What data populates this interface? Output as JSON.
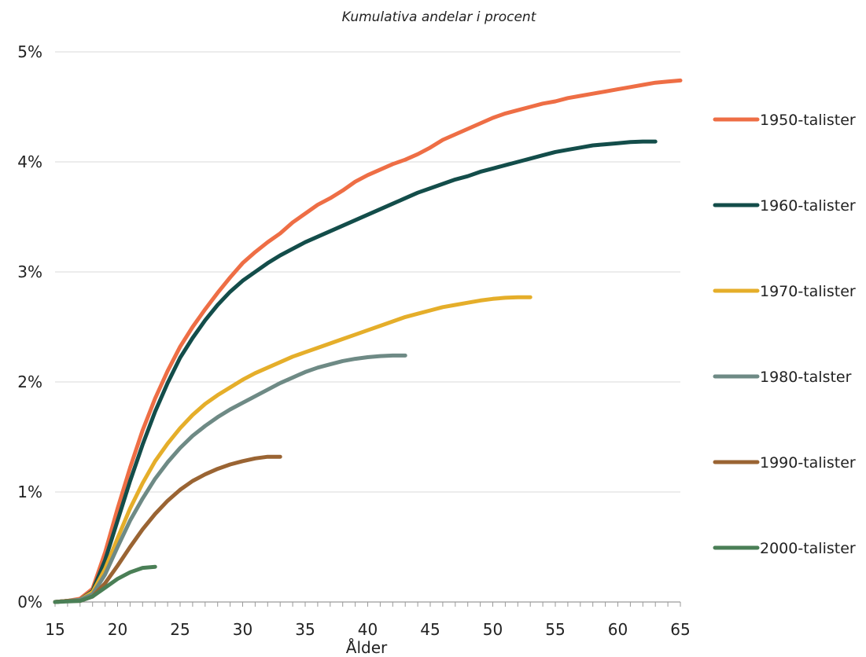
{
  "chart_data": {
    "type": "line",
    "title": "Kumulativa andelar i procent",
    "xlabel": "Ålder",
    "ylabel": "",
    "xlim": [
      15,
      65
    ],
    "ylim": [
      0,
      5
    ],
    "x_ticks": [
      15,
      20,
      25,
      30,
      35,
      40,
      45,
      50,
      55,
      60,
      65
    ],
    "y_ticks": [
      0,
      1,
      2,
      3,
      4,
      5
    ],
    "y_tick_labels": [
      "0%",
      "1%",
      "2%",
      "3%",
      "4%",
      "5%"
    ],
    "grid": "horizontal",
    "legend_position": "right",
    "series": [
      {
        "name": "1950-talister",
        "color": "#EE6E45",
        "x": [
          15,
          16,
          17,
          18,
          19,
          20,
          21,
          22,
          23,
          24,
          25,
          26,
          27,
          28,
          29,
          30,
          31,
          32,
          33,
          34,
          35,
          36,
          37,
          38,
          39,
          40,
          41,
          42,
          43,
          44,
          45,
          46,
          47,
          48,
          49,
          50,
          51,
          52,
          53,
          54,
          55,
          56,
          57,
          58,
          59,
          60,
          61,
          62,
          63,
          64,
          65
        ],
        "values": [
          0,
          0.01,
          0.03,
          0.12,
          0.45,
          0.85,
          1.22,
          1.56,
          1.85,
          2.1,
          2.32,
          2.5,
          2.66,
          2.81,
          2.95,
          3.08,
          3.18,
          3.27,
          3.35,
          3.45,
          3.53,
          3.61,
          3.67,
          3.74,
          3.82,
          3.88,
          3.93,
          3.98,
          4.02,
          4.07,
          4.13,
          4.2,
          4.25,
          4.3,
          4.35,
          4.4,
          4.44,
          4.47,
          4.5,
          4.53,
          4.55,
          4.58,
          4.6,
          4.62,
          4.64,
          4.66,
          4.68,
          4.7,
          4.72,
          4.73,
          4.74
        ]
      },
      {
        "name": "1960-talister",
        "color": "#134D4A",
        "x": [
          15,
          16,
          17,
          18,
          19,
          20,
          21,
          22,
          23,
          24,
          25,
          26,
          27,
          28,
          29,
          30,
          31,
          32,
          33,
          34,
          35,
          36,
          37,
          38,
          39,
          40,
          41,
          42,
          43,
          44,
          45,
          46,
          47,
          48,
          49,
          50,
          51,
          52,
          53,
          54,
          55,
          56,
          57,
          58,
          59,
          60,
          61,
          62,
          63
        ],
        "values": [
          0,
          0.01,
          0.02,
          0.1,
          0.38,
          0.74,
          1.1,
          1.43,
          1.73,
          1.99,
          2.22,
          2.4,
          2.56,
          2.7,
          2.82,
          2.92,
          3.0,
          3.08,
          3.15,
          3.21,
          3.27,
          3.32,
          3.37,
          3.42,
          3.47,
          3.52,
          3.57,
          3.62,
          3.67,
          3.72,
          3.76,
          3.8,
          3.84,
          3.87,
          3.91,
          3.94,
          3.97,
          4.0,
          4.03,
          4.06,
          4.09,
          4.11,
          4.13,
          4.15,
          4.16,
          4.17,
          4.18,
          4.185,
          4.185
        ]
      },
      {
        "name": "1970-talister",
        "color": "#E5AE2A",
        "x": [
          15,
          16,
          17,
          18,
          19,
          20,
          21,
          22,
          23,
          24,
          25,
          26,
          27,
          28,
          29,
          30,
          31,
          32,
          33,
          34,
          35,
          36,
          37,
          38,
          39,
          40,
          41,
          42,
          43,
          44,
          45,
          46,
          47,
          48,
          49,
          50,
          51,
          52,
          53
        ],
        "values": [
          0,
          0.01,
          0.02,
          0.09,
          0.3,
          0.58,
          0.85,
          1.08,
          1.28,
          1.44,
          1.58,
          1.7,
          1.8,
          1.88,
          1.95,
          2.02,
          2.08,
          2.13,
          2.18,
          2.23,
          2.27,
          2.31,
          2.35,
          2.39,
          2.43,
          2.47,
          2.51,
          2.55,
          2.59,
          2.62,
          2.65,
          2.68,
          2.7,
          2.72,
          2.74,
          2.755,
          2.765,
          2.77,
          2.77
        ]
      },
      {
        "name": "1980-talster",
        "color": "#6E8A85",
        "x": [
          15,
          16,
          17,
          18,
          19,
          20,
          21,
          22,
          23,
          24,
          25,
          26,
          27,
          28,
          29,
          30,
          31,
          32,
          33,
          34,
          35,
          36,
          37,
          38,
          39,
          40,
          41,
          42,
          43
        ],
        "values": [
          0,
          0.01,
          0.02,
          0.07,
          0.25,
          0.5,
          0.74,
          0.94,
          1.12,
          1.27,
          1.4,
          1.51,
          1.6,
          1.68,
          1.75,
          1.81,
          1.87,
          1.93,
          1.99,
          2.04,
          2.09,
          2.13,
          2.16,
          2.19,
          2.21,
          2.225,
          2.235,
          2.24,
          2.24
        ]
      },
      {
        "name": "1990-talister",
        "color": "#9A6433",
        "x": [
          15,
          16,
          17,
          18,
          19,
          20,
          21,
          22,
          23,
          24,
          25,
          26,
          27,
          28,
          29,
          30,
          31,
          32,
          33
        ],
        "values": [
          0,
          0.01,
          0.01,
          0.05,
          0.17,
          0.33,
          0.5,
          0.66,
          0.8,
          0.92,
          1.02,
          1.1,
          1.16,
          1.21,
          1.25,
          1.28,
          1.305,
          1.32,
          1.32
        ]
      },
      {
        "name": "2000-talister",
        "color": "#4A7F56",
        "x": [
          15,
          16,
          17,
          18,
          19,
          20,
          21,
          22,
          23
        ],
        "values": [
          0,
          0.005,
          0.01,
          0.05,
          0.13,
          0.21,
          0.27,
          0.31,
          0.32
        ]
      }
    ]
  }
}
